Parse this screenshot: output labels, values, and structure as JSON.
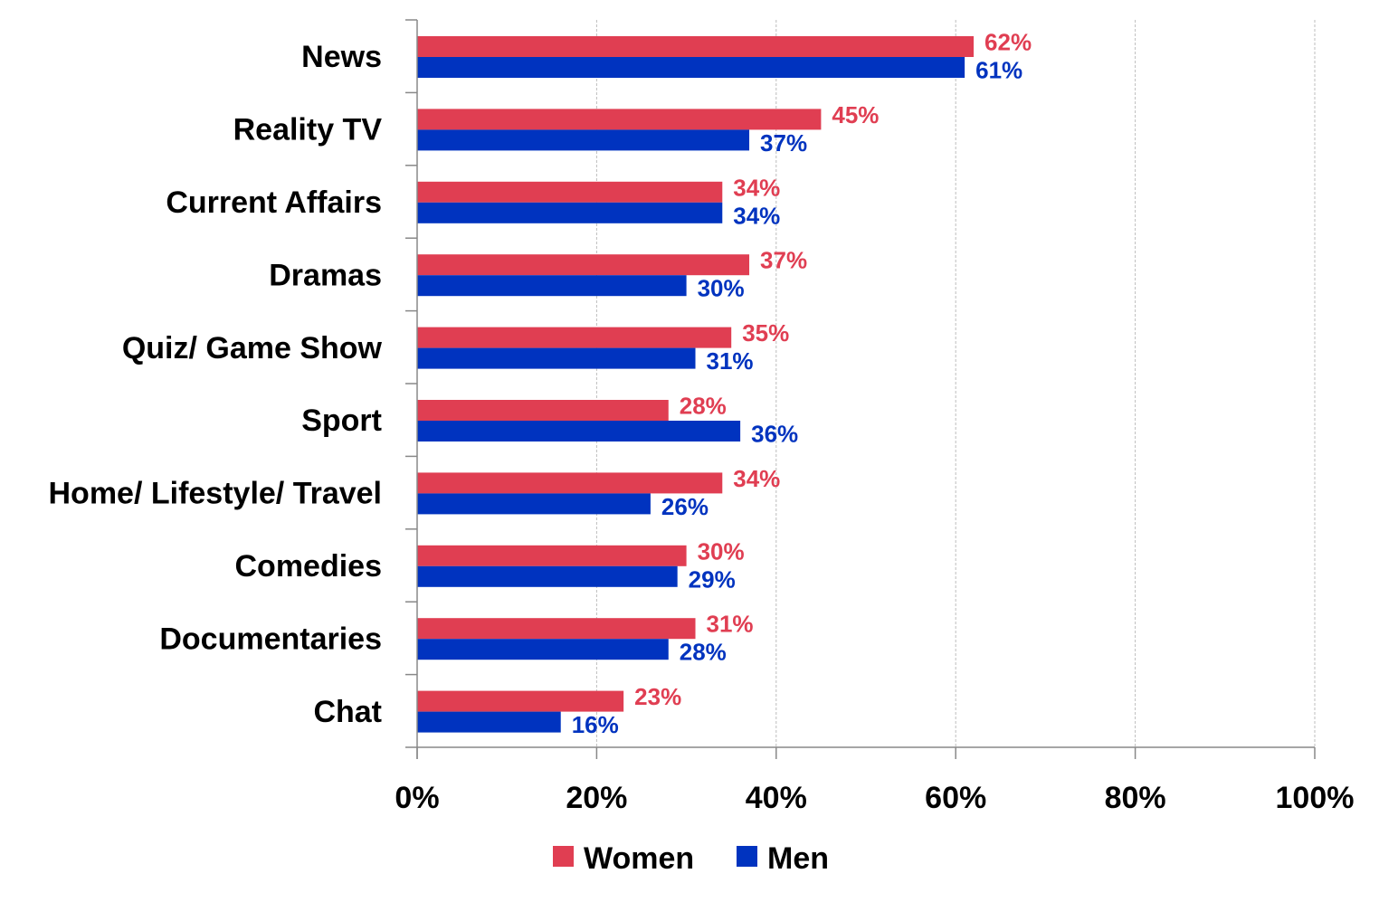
{
  "chart_data": {
    "type": "bar",
    "orientation": "horizontal",
    "categories": [
      "News",
      "Reality TV",
      "Current Affairs",
      "Dramas",
      "Quiz/ Game Show",
      "Sport",
      "Home/ Lifestyle/ Travel",
      "Comedies",
      "Documentaries",
      "Chat"
    ],
    "series": [
      {
        "name": "Women",
        "color": "#E03E52",
        "values": [
          62,
          45,
          34,
          37,
          35,
          28,
          34,
          30,
          31,
          23
        ],
        "labels": [
          "62%",
          "45%",
          "34%",
          "37%",
          "35%",
          "28%",
          "34%",
          "30%",
          "31%",
          "23%"
        ]
      },
      {
        "name": "Men",
        "color": "#0033BF",
        "values": [
          61,
          37,
          34,
          30,
          31,
          36,
          26,
          29,
          28,
          16
        ],
        "labels": [
          "61%",
          "37%",
          "34%",
          "30%",
          "31%",
          "36%",
          "26%",
          "29%",
          "28%",
          "16%"
        ]
      }
    ],
    "xlim": [
      0,
      100
    ],
    "xticks": [
      "0%",
      "20%",
      "40%",
      "60%",
      "80%",
      "100%"
    ],
    "xtick_values": [
      0,
      20,
      40,
      60,
      80,
      100
    ],
    "grid": "vertical dashed",
    "legend": "bottom",
    "title": "",
    "xlabel": "",
    "ylabel": ""
  }
}
